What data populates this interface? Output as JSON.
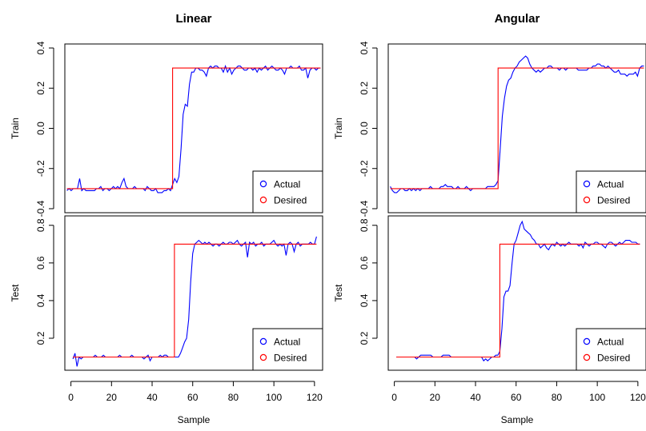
{
  "figure": {
    "columns": [
      "Linear",
      "Angular"
    ],
    "rows": [
      "Train",
      "Test"
    ],
    "xlabel": "Sample"
  },
  "legend": [
    "Actual",
    "Desired"
  ],
  "colors": {
    "actual": "#0000ff",
    "desired": "#ff0000"
  },
  "chart_data": [
    {
      "type": "line",
      "column": "Linear",
      "row": "Train",
      "ylabel": "Train",
      "xlim": [
        0,
        122
      ],
      "ylim": [
        -0.42,
        0.42
      ],
      "xticks": [],
      "yticks": [
        -0.4,
        -0.2,
        0.0,
        0.2,
        0.4
      ],
      "ytick_labels": [
        "-0.4",
        "-0.2",
        "0.0",
        "0.2",
        "0.4"
      ],
      "grid": false,
      "legend_position": "bottom-right",
      "series": [
        {
          "name": "Actual",
          "x_start": 1,
          "values": [
            -0.31,
            -0.3,
            -0.31,
            -0.3,
            -0.3,
            -0.3,
            -0.25,
            -0.31,
            -0.3,
            -0.31,
            -0.31,
            -0.31,
            -0.31,
            -0.31,
            -0.3,
            -0.3,
            -0.29,
            -0.31,
            -0.3,
            -0.3,
            -0.31,
            -0.3,
            -0.29,
            -0.3,
            -0.29,
            -0.3,
            -0.27,
            -0.25,
            -0.29,
            -0.3,
            -0.3,
            -0.3,
            -0.29,
            -0.3,
            -0.3,
            -0.3,
            -0.3,
            -0.31,
            -0.29,
            -0.3,
            -0.31,
            -0.31,
            -0.3,
            -0.32,
            -0.32,
            -0.32,
            -0.31,
            -0.31,
            -0.3,
            -0.31,
            -0.28,
            -0.25,
            -0.27,
            -0.24,
            -0.1,
            0.07,
            0.12,
            0.11,
            0.22,
            0.28,
            0.28,
            0.3,
            0.3,
            0.29,
            0.29,
            0.28,
            0.26,
            0.3,
            0.31,
            0.3,
            0.31,
            0.31,
            0.3,
            0.3,
            0.28,
            0.31,
            0.28,
            0.3,
            0.27,
            0.29,
            0.3,
            0.31,
            0.31,
            0.3,
            0.29,
            0.29,
            0.3,
            0.3,
            0.29,
            0.3,
            0.28,
            0.3,
            0.29,
            0.3,
            0.31,
            0.29,
            0.3,
            0.31,
            0.3,
            0.29,
            0.29,
            0.3,
            0.29,
            0.27,
            0.3,
            0.3,
            0.31,
            0.3,
            0.3,
            0.3,
            0.31,
            0.29,
            0.29,
            0.3,
            0.25,
            0.29,
            0.3,
            0.3,
            0.29,
            0.3,
            0.3
          ]
        },
        {
          "name": "Desired",
          "x": [
            1,
            51,
            51,
            121
          ],
          "values": [
            -0.3,
            -0.3,
            0.3,
            0.3
          ]
        }
      ]
    },
    {
      "type": "line",
      "column": "Angular",
      "row": "Train",
      "ylabel": "Train",
      "xlim": [
        0,
        122
      ],
      "ylim": [
        -0.42,
        0.42
      ],
      "xticks": [],
      "yticks": [
        -0.4,
        -0.2,
        0.0,
        0.2,
        0.4
      ],
      "ytick_labels": [
        "-0.4",
        "-0.2",
        "0.0",
        "0.2",
        "0.4"
      ],
      "grid": false,
      "legend_position": "bottom-right",
      "series": [
        {
          "name": "Actual",
          "x_start": 1,
          "values": [
            -0.29,
            -0.31,
            -0.32,
            -0.32,
            -0.31,
            -0.3,
            -0.3,
            -0.31,
            -0.31,
            -0.3,
            -0.31,
            -0.3,
            -0.31,
            -0.3,
            -0.31,
            -0.3,
            -0.3,
            -0.3,
            -0.3,
            -0.29,
            -0.3,
            -0.3,
            -0.3,
            -0.3,
            -0.29,
            -0.29,
            -0.28,
            -0.29,
            -0.29,
            -0.29,
            -0.3,
            -0.3,
            -0.29,
            -0.3,
            -0.3,
            -0.3,
            -0.29,
            -0.3,
            -0.31,
            -0.3,
            -0.3,
            -0.3,
            -0.3,
            -0.3,
            -0.3,
            -0.3,
            -0.29,
            -0.29,
            -0.29,
            -0.29,
            -0.28,
            -0.26,
            -0.1,
            0.06,
            0.15,
            0.21,
            0.24,
            0.25,
            0.28,
            0.3,
            0.31,
            0.33,
            0.34,
            0.35,
            0.36,
            0.35,
            0.32,
            0.3,
            0.29,
            0.28,
            0.29,
            0.28,
            0.29,
            0.3,
            0.3,
            0.31,
            0.31,
            0.3,
            0.3,
            0.3,
            0.29,
            0.3,
            0.3,
            0.29,
            0.3,
            0.3,
            0.3,
            0.3,
            0.3,
            0.29,
            0.29,
            0.29,
            0.29,
            0.29,
            0.3,
            0.3,
            0.31,
            0.31,
            0.32,
            0.32,
            0.31,
            0.31,
            0.3,
            0.31,
            0.3,
            0.29,
            0.28,
            0.28,
            0.29,
            0.27,
            0.27,
            0.27,
            0.26,
            0.27,
            0.27,
            0.27,
            0.28,
            0.26,
            0.3,
            0.31,
            0.31
          ]
        },
        {
          "name": "Desired",
          "x": [
            1,
            52,
            52,
            121
          ],
          "values": [
            -0.3,
            -0.3,
            0.3,
            0.3
          ]
        }
      ]
    },
    {
      "type": "line",
      "column": "Linear",
      "row": "Test",
      "ylabel": "Test",
      "xlim": [
        -3,
        124
      ],
      "ylim": [
        0.03,
        0.85
      ],
      "xticks": [
        0,
        20,
        40,
        60,
        80,
        100,
        120
      ],
      "yticks": [
        0.2,
        0.4,
        0.6,
        0.8
      ],
      "ytick_labels": [
        "0.2",
        "0.4",
        "0.6",
        "0.8"
      ],
      "grid": false,
      "legend_position": "bottom-right",
      "series": [
        {
          "name": "Actual",
          "x_start": 1,
          "values": [
            0.09,
            0.12,
            0.05,
            0.1,
            0.09,
            0.1,
            0.1,
            0.1,
            0.1,
            0.1,
            0.1,
            0.11,
            0.1,
            0.1,
            0.1,
            0.11,
            0.1,
            0.1,
            0.1,
            0.1,
            0.1,
            0.1,
            0.1,
            0.11,
            0.1,
            0.1,
            0.1,
            0.1,
            0.1,
            0.11,
            0.1,
            0.1,
            0.1,
            0.1,
            0.1,
            0.09,
            0.1,
            0.11,
            0.08,
            0.1,
            0.1,
            0.1,
            0.1,
            0.11,
            0.1,
            0.11,
            0.11,
            0.1,
            0.1,
            0.1,
            0.1,
            0.1,
            0.1,
            0.12,
            0.15,
            0.18,
            0.2,
            0.3,
            0.5,
            0.65,
            0.7,
            0.71,
            0.72,
            0.71,
            0.7,
            0.71,
            0.7,
            0.71,
            0.7,
            0.69,
            0.7,
            0.7,
            0.69,
            0.7,
            0.71,
            0.7,
            0.7,
            0.71,
            0.71,
            0.7,
            0.71,
            0.72,
            0.7,
            0.69,
            0.7,
            0.71,
            0.63,
            0.71,
            0.7,
            0.71,
            0.69,
            0.7,
            0.7,
            0.71,
            0.69,
            0.7,
            0.7,
            0.7,
            0.71,
            0.72,
            0.7,
            0.69,
            0.7,
            0.69,
            0.7,
            0.64,
            0.7,
            0.71,
            0.7,
            0.66,
            0.7,
            0.71,
            0.69,
            0.7,
            0.7,
            0.7,
            0.7,
            0.71,
            0.7,
            0.7,
            0.74
          ]
        },
        {
          "name": "Desired",
          "x": [
            1,
            51,
            51,
            121
          ],
          "values": [
            0.1,
            0.1,
            0.7,
            0.7
          ]
        }
      ]
    },
    {
      "type": "line",
      "column": "Angular",
      "row": "Test",
      "ylabel": "Test",
      "xlim": [
        -3,
        124
      ],
      "ylim": [
        0.03,
        0.85
      ],
      "xticks": [
        0,
        20,
        40,
        60,
        80,
        100,
        120
      ],
      "yticks": [
        0.2,
        0.4,
        0.6,
        0.8
      ],
      "ytick_labels": [
        "0.2",
        "0.4",
        "0.6",
        "0.8"
      ],
      "grid": false,
      "legend_position": "bottom-right",
      "series": [
        {
          "name": "Actual",
          "x_start": 1,
          "values": [
            0.1,
            0.1,
            0.1,
            0.1,
            0.1,
            0.1,
            0.1,
            0.1,
            0.1,
            0.1,
            0.09,
            0.1,
            0.11,
            0.11,
            0.11,
            0.11,
            0.11,
            0.11,
            0.1,
            0.1,
            0.1,
            0.1,
            0.1,
            0.11,
            0.11,
            0.11,
            0.11,
            0.1,
            0.1,
            0.1,
            0.1,
            0.1,
            0.1,
            0.1,
            0.1,
            0.1,
            0.1,
            0.1,
            0.1,
            0.1,
            0.1,
            0.1,
            0.1,
            0.08,
            0.09,
            0.08,
            0.09,
            0.1,
            0.1,
            0.11,
            0.11,
            0.13,
            0.25,
            0.42,
            0.45,
            0.45,
            0.48,
            0.6,
            0.7,
            0.72,
            0.76,
            0.8,
            0.82,
            0.78,
            0.77,
            0.76,
            0.75,
            0.73,
            0.72,
            0.7,
            0.7,
            0.68,
            0.69,
            0.7,
            0.68,
            0.67,
            0.69,
            0.7,
            0.69,
            0.71,
            0.7,
            0.69,
            0.7,
            0.69,
            0.7,
            0.71,
            0.7,
            0.7,
            0.7,
            0.7,
            0.69,
            0.7,
            0.68,
            0.71,
            0.7,
            0.69,
            0.7,
            0.7,
            0.71,
            0.71,
            0.7,
            0.7,
            0.69,
            0.68,
            0.7,
            0.71,
            0.71,
            0.7,
            0.69,
            0.7,
            0.71,
            0.7,
            0.71,
            0.72,
            0.72,
            0.72,
            0.71,
            0.71,
            0.71,
            0.7,
            0.7
          ]
        },
        {
          "name": "Desired",
          "x": [
            1,
            52,
            52,
            121
          ],
          "values": [
            0.1,
            0.1,
            0.7,
            0.7
          ]
        }
      ]
    }
  ]
}
